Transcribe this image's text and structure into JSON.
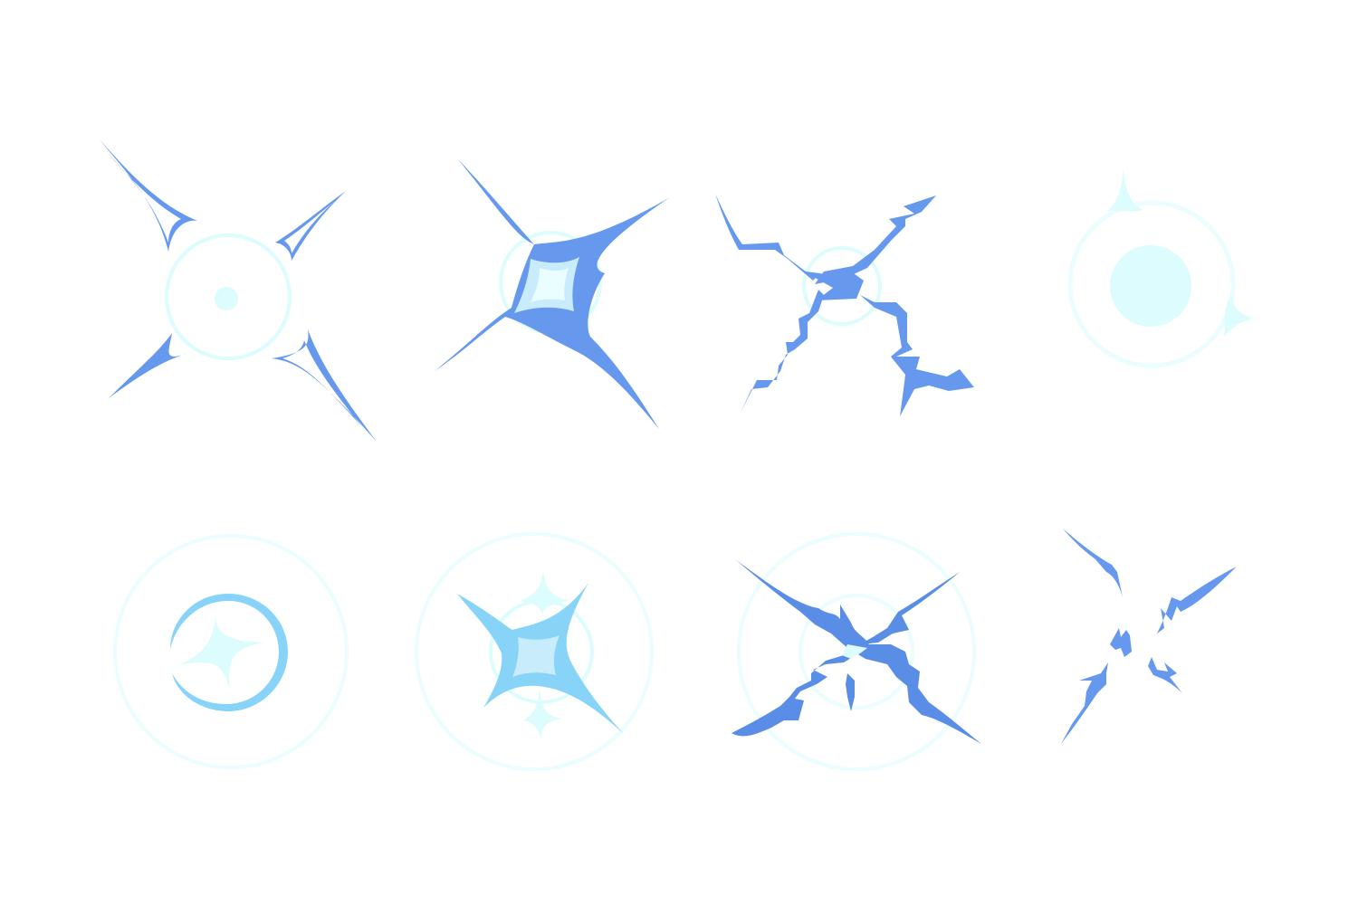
{
  "background": "#ffffff",
  "colors": {
    "blue": "#6699ee",
    "blue_dark": "#5a8ee6",
    "light_blue": "#88d4f8",
    "pale_cyan": "#ddfcfe",
    "faint_cyan": "#eafdff",
    "fill_light": "#c8ecfb"
  },
  "effects": [
    {
      "name": "spark-burst-rays-with-ring",
      "icon": "spark-burst-icon"
    },
    {
      "name": "four-point-star-flash",
      "icon": "star-flash-icon"
    },
    {
      "name": "lightning-cross-burst",
      "icon": "lightning-burst-icon"
    },
    {
      "name": "glow-orb-with-halo",
      "icon": "glow-orb-icon"
    },
    {
      "name": "ring-twinkle-star",
      "icon": "ring-twinkle-icon"
    },
    {
      "name": "star-in-halo-rings",
      "icon": "halo-star-icon"
    },
    {
      "name": "jagged-x-strike",
      "icon": "x-strike-icon"
    },
    {
      "name": "scattered-shards",
      "icon": "shards-icon"
    }
  ]
}
